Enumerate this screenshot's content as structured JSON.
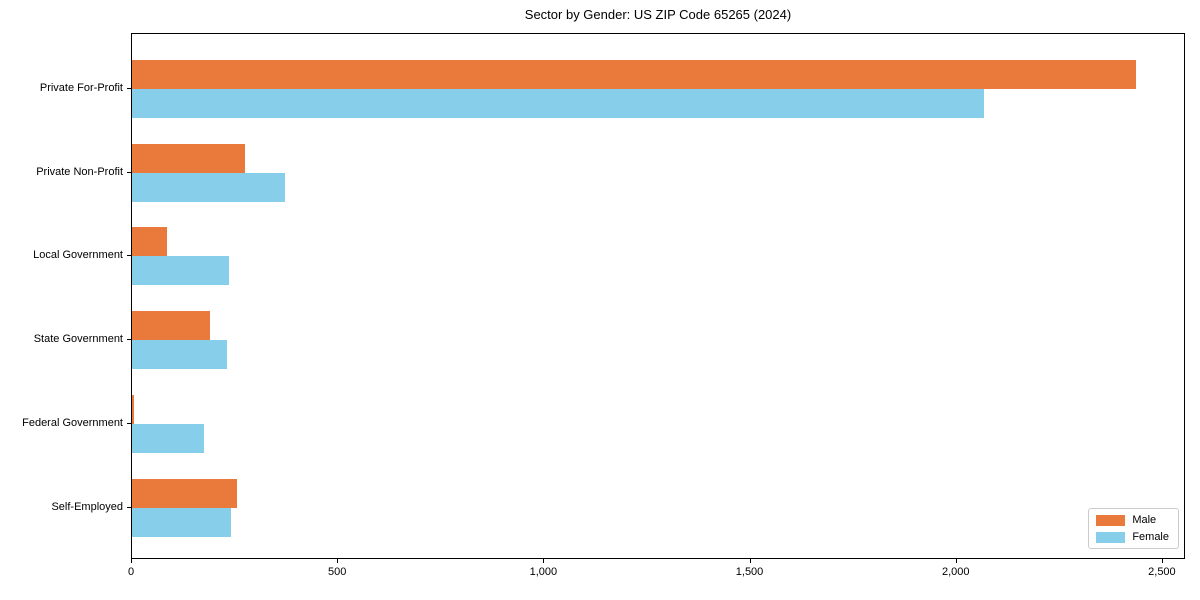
{
  "title": "Sector by Gender: US ZIP Code 65265 (2024)",
  "colors": {
    "male": "#e97a3c",
    "female": "#87ceeb",
    "spine": "#000000",
    "legend_border": "#cccccc",
    "background": "#ffffff"
  },
  "legend": {
    "position": "lower right",
    "items": [
      {
        "label": "Male",
        "color": "#e97a3c"
      },
      {
        "label": "Female",
        "color": "#87ceeb"
      }
    ]
  },
  "chart_data": {
    "type": "bar",
    "orientation": "horizontal",
    "title": "Sector by Gender: US ZIP Code 65265 (2024)",
    "categories": [
      "Private For-Profit",
      "Private Non-Profit",
      "Local Government",
      "State Government",
      "Federal Government",
      "Self-Employed"
    ],
    "series": [
      {
        "name": "Male",
        "color": "#e97a3c",
        "values": [
          2435,
          275,
          85,
          190,
          4,
          255
        ]
      },
      {
        "name": "Female",
        "color": "#87ceeb",
        "values": [
          2065,
          370,
          235,
          230,
          175,
          240
        ]
      }
    ],
    "xlabel": "",
    "ylabel": "",
    "xlim": [
      0,
      2556
    ],
    "xticks": {
      "values": [
        0,
        500,
        1000,
        1500,
        2000,
        2500
      ],
      "labels": [
        "0",
        "500",
        "1,000",
        "1,500",
        "2,000",
        "2,500"
      ]
    },
    "grid": false,
    "legend_position": "lower right"
  }
}
